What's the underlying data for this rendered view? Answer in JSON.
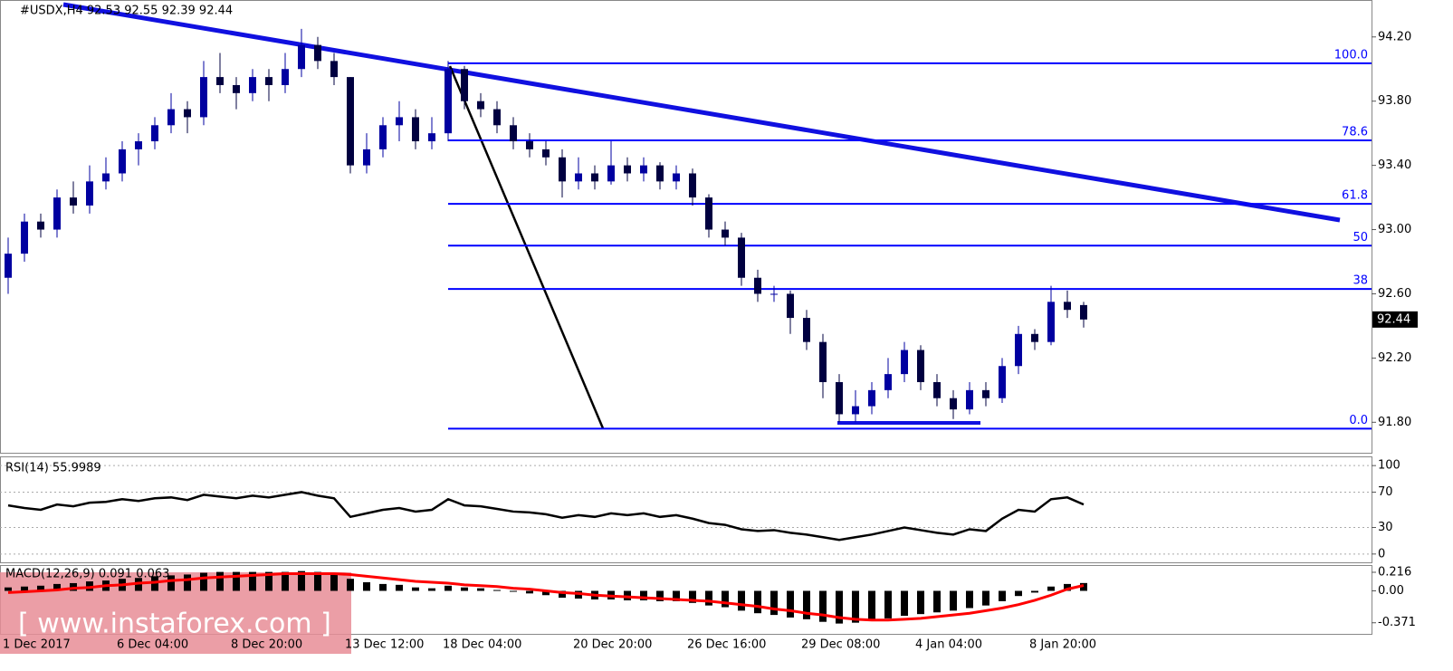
{
  "header": "#USDX,H4  92.53 92.55 92.39 92.44",
  "watermark": "[ www.instaforex.com ]",
  "chart_data": [
    {
      "type": "candlestick",
      "title": "#USDX,H4  92.53 92.55 92.39 92.44",
      "categories": [
        "1 Dec 2017",
        null,
        null,
        null,
        null,
        null,
        null,
        "6 Dec 04:00",
        null,
        null,
        null,
        null,
        null,
        null,
        "8 Dec 20:00",
        null,
        null,
        null,
        null,
        null,
        null,
        "13 Dec 12:00",
        null,
        null,
        null,
        null,
        null,
        "18 Dec 04:00",
        null,
        null,
        null,
        null,
        null,
        null,
        null,
        "20 Dec 20:00",
        null,
        null,
        null,
        null,
        null,
        null,
        "26 Dec 16:00",
        null,
        null,
        null,
        null,
        null,
        null,
        "29 Dec 08:00",
        null,
        null,
        null,
        null,
        null,
        null,
        "4 Jan 04:00",
        null,
        null,
        null,
        null,
        null,
        null,
        "8 Jan 20:00",
        null,
        null,
        null
      ],
      "ohlc": [
        [
          92.7,
          92.95,
          92.6,
          92.85
        ],
        [
          92.85,
          93.1,
          92.8,
          93.05
        ],
        [
          93.05,
          93.1,
          92.95,
          93.0
        ],
        [
          93.0,
          93.25,
          92.95,
          93.2
        ],
        [
          93.2,
          93.3,
          93.1,
          93.15
        ],
        [
          93.15,
          93.4,
          93.1,
          93.3
        ],
        [
          93.3,
          93.45,
          93.25,
          93.35
        ],
        [
          93.35,
          93.55,
          93.3,
          93.5
        ],
        [
          93.5,
          93.6,
          93.4,
          93.55
        ],
        [
          93.55,
          93.7,
          93.5,
          93.65
        ],
        [
          93.65,
          93.85,
          93.6,
          93.75
        ],
        [
          93.75,
          93.8,
          93.6,
          93.7
        ],
        [
          93.7,
          94.05,
          93.65,
          93.95
        ],
        [
          93.95,
          94.1,
          93.85,
          93.9
        ],
        [
          93.9,
          93.95,
          93.75,
          93.85
        ],
        [
          93.85,
          94.0,
          93.8,
          93.95
        ],
        [
          93.95,
          94.0,
          93.8,
          93.9
        ],
        [
          93.9,
          94.1,
          93.85,
          94.0
        ],
        [
          94.0,
          94.25,
          93.95,
          94.15
        ],
        [
          94.15,
          94.2,
          94.0,
          94.05
        ],
        [
          94.05,
          94.1,
          93.9,
          93.95
        ],
        [
          93.95,
          93.95,
          93.35,
          93.4
        ],
        [
          93.4,
          93.6,
          93.35,
          93.5
        ],
        [
          93.5,
          93.7,
          93.45,
          93.65
        ],
        [
          93.65,
          93.8,
          93.55,
          93.7
        ],
        [
          93.7,
          93.75,
          93.5,
          93.55
        ],
        [
          93.55,
          93.7,
          93.5,
          93.6
        ],
        [
          93.6,
          94.05,
          93.55,
          94.0
        ],
        [
          94.0,
          94.02,
          93.75,
          93.8
        ],
        [
          93.8,
          93.85,
          93.7,
          93.75
        ],
        [
          93.75,
          93.8,
          93.6,
          93.65
        ],
        [
          93.65,
          93.7,
          93.5,
          93.55
        ],
        [
          93.55,
          93.6,
          93.45,
          93.5
        ],
        [
          93.5,
          93.55,
          93.4,
          93.45
        ],
        [
          93.45,
          93.5,
          93.2,
          93.3
        ],
        [
          93.3,
          93.45,
          93.25,
          93.35
        ],
        [
          93.35,
          93.4,
          93.25,
          93.3
        ],
        [
          93.3,
          93.55,
          93.28,
          93.4
        ],
        [
          93.4,
          93.45,
          93.3,
          93.35
        ],
        [
          93.35,
          93.45,
          93.3,
          93.4
        ],
        [
          93.4,
          93.42,
          93.25,
          93.3
        ],
        [
          93.3,
          93.4,
          93.25,
          93.35
        ],
        [
          93.35,
          93.38,
          93.15,
          93.2
        ],
        [
          93.2,
          93.22,
          92.95,
          93.0
        ],
        [
          93.0,
          93.05,
          92.9,
          92.95
        ],
        [
          92.95,
          92.98,
          92.65,
          92.7
        ],
        [
          92.7,
          92.75,
          92.55,
          92.6
        ],
        [
          92.6,
          92.65,
          92.55,
          92.6
        ],
        [
          92.6,
          92.62,
          92.35,
          92.45
        ],
        [
          92.45,
          92.5,
          92.25,
          92.3
        ],
        [
          92.3,
          92.35,
          91.95,
          92.05
        ],
        [
          92.05,
          92.1,
          91.8,
          91.85
        ],
        [
          91.85,
          92.0,
          91.8,
          91.9
        ],
        [
          91.9,
          92.05,
          91.85,
          92.0
        ],
        [
          92.0,
          92.2,
          91.95,
          92.1
        ],
        [
          92.1,
          92.3,
          92.05,
          92.25
        ],
        [
          92.25,
          92.28,
          92.0,
          92.05
        ],
        [
          92.05,
          92.1,
          91.9,
          91.95
        ],
        [
          91.95,
          92.0,
          91.82,
          91.88
        ],
        [
          91.88,
          92.05,
          91.85,
          92.0
        ],
        [
          92.0,
          92.05,
          91.9,
          91.95
        ],
        [
          91.95,
          92.2,
          91.92,
          92.15
        ],
        [
          92.15,
          92.4,
          92.1,
          92.35
        ],
        [
          92.35,
          92.38,
          92.25,
          92.3
        ],
        [
          92.3,
          92.65,
          92.28,
          92.55
        ],
        [
          92.55,
          92.62,
          92.45,
          92.5
        ],
        [
          92.53,
          92.55,
          92.39,
          92.44
        ]
      ],
      "up_color": "#0000a0",
      "down_color": "#000040",
      "ylim": [
        91.61,
        94.43
      ],
      "yticks": [
        {
          "value": 94.2,
          "label": "94.20"
        },
        {
          "value": 93.8,
          "label": "93.80"
        },
        {
          "value": 93.4,
          "label": "93.40"
        },
        {
          "value": 93.0,
          "label": "93.00"
        },
        {
          "value": 92.6,
          "label": "92.60"
        },
        {
          "value": 92.2,
          "label": "92.20"
        },
        {
          "value": 91.8,
          "label": "91.80"
        }
      ],
      "fib_levels": [
        {
          "value": 94.036,
          "label": "100.0"
        },
        {
          "value": 93.556,
          "label": "78.6"
        },
        {
          "value": 93.16,
          "label": "61.8"
        },
        {
          "value": 92.9,
          "label": "50"
        },
        {
          "value": 92.63,
          "label": "38"
        },
        {
          "value": 91.76,
          "label": "0.0"
        }
      ],
      "fib_color": "#0000ff",
      "last_price": 92.44
    },
    {
      "type": "line",
      "title": "RSI(14) 55.9989",
      "values": [
        55,
        52,
        50,
        56,
        54,
        58,
        59,
        62,
        60,
        63,
        64,
        61,
        67,
        65,
        63,
        66,
        64,
        67,
        70,
        66,
        63,
        42,
        46,
        50,
        52,
        48,
        50,
        62,
        55,
        54,
        51,
        48,
        47,
        45,
        41,
        44,
        42,
        46,
        44,
        46,
        42,
        44,
        40,
        35,
        33,
        28,
        26,
        27,
        24,
        22,
        19,
        16,
        19,
        22,
        26,
        30,
        27,
        24,
        22,
        28,
        26,
        40,
        50,
        48,
        62,
        64,
        55.9989
      ],
      "color": "#000000",
      "ylim": [
        -9.4,
        110.4
      ],
      "yticks": [
        100,
        70,
        30,
        0
      ]
    },
    {
      "type": "macd",
      "title": "MACD(12,26,9) 0.091 0.063",
      "values": [
        0.04,
        0.05,
        0.06,
        0.08,
        0.09,
        0.11,
        0.12,
        0.14,
        0.15,
        0.17,
        0.18,
        0.19,
        0.21,
        0.22,
        0.22,
        0.22,
        0.22,
        0.22,
        0.23,
        0.22,
        0.21,
        0.14,
        0.1,
        0.08,
        0.07,
        0.04,
        0.03,
        0.06,
        0.04,
        0.03,
        0.01,
        -0.01,
        -0.03,
        -0.05,
        -0.08,
        -0.09,
        -0.1,
        -0.1,
        -0.11,
        -0.11,
        -0.12,
        -0.12,
        -0.14,
        -0.17,
        -0.19,
        -0.23,
        -0.26,
        -0.28,
        -0.31,
        -0.33,
        -0.36,
        -0.38,
        -0.37,
        -0.35,
        -0.32,
        -0.29,
        -0.27,
        -0.25,
        -0.23,
        -0.2,
        -0.17,
        -0.12,
        -0.06,
        -0.02,
        0.05,
        0.08,
        0.091
      ],
      "signal": [
        -0.02,
        -0.01,
        0.0,
        0.01,
        0.03,
        0.04,
        0.06,
        0.07,
        0.09,
        0.1,
        0.12,
        0.13,
        0.15,
        0.16,
        0.17,
        0.18,
        0.19,
        0.2,
        0.2,
        0.2,
        0.2,
        0.19,
        0.17,
        0.15,
        0.13,
        0.11,
        0.1,
        0.09,
        0.07,
        0.06,
        0.05,
        0.03,
        0.02,
        0.0,
        -0.02,
        -0.03,
        -0.05,
        -0.06,
        -0.07,
        -0.08,
        -0.09,
        -0.1,
        -0.11,
        -0.12,
        -0.14,
        -0.16,
        -0.18,
        -0.21,
        -0.23,
        -0.26,
        -0.28,
        -0.31,
        -0.33,
        -0.34,
        -0.34,
        -0.33,
        -0.32,
        -0.3,
        -0.28,
        -0.26,
        -0.23,
        -0.2,
        -0.16,
        -0.11,
        -0.05,
        0.02,
        0.063
      ],
      "color": "#000000",
      "signal_color": "#ff0000",
      "ylim": [
        -0.5,
        0.3
      ],
      "yticks": [
        0.216,
        {
          "value": 0,
          "label": "0.00"
        },
        -0.371
      ]
    }
  ]
}
